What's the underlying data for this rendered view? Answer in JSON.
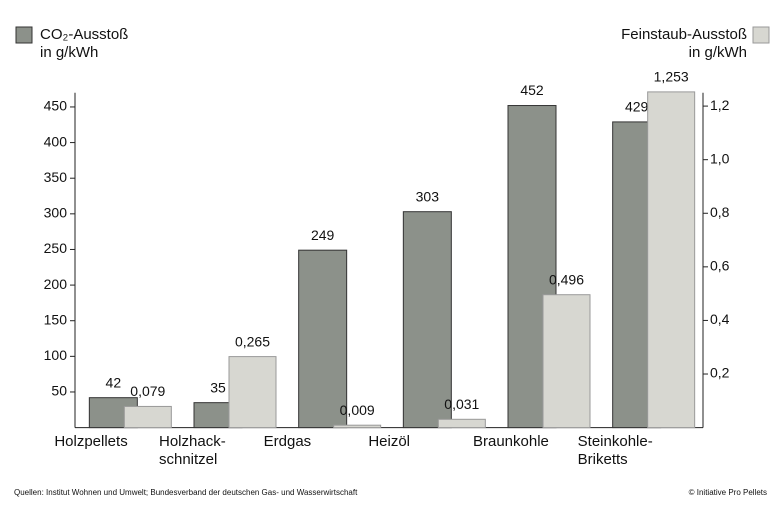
{
  "chart_data": {
    "type": "bar",
    "categories": [
      "Holzpellets",
      "Holzhack-\nschnitzel",
      "Erdgas",
      "Heizöl",
      "Braunkohle",
      "Steinkohle-\nBriketts"
    ],
    "series": [
      {
        "name": "CO₂-Ausstoß\nin g/kWh",
        "color": "#8c918a",
        "values": [
          42,
          35,
          249,
          303,
          452,
          429
        ]
      },
      {
        "name": "Feinstaub-Ausstoß\nin g/kWh",
        "color": "#d7d7d1",
        "axis": "y2",
        "values": [
          0.079,
          0.265,
          0.009,
          0.031,
          0.496,
          1.253
        ],
        "value_labels": [
          "0,079",
          "0,265",
          "0,009",
          "0,031",
          "0,496",
          "1,253"
        ]
      }
    ],
    "ylim": [
      0,
      470
    ],
    "yticks": [
      50,
      100,
      150,
      200,
      250,
      300,
      350,
      400,
      450
    ],
    "y2lim": [
      0,
      1.25
    ],
    "y2ticks": [
      {
        "value": 0.2,
        "label": "0,2"
      },
      {
        "value": 0.4,
        "label": "0,4"
      },
      {
        "value": 0.6,
        "label": "0,6"
      },
      {
        "value": 0.8,
        "label": "0,8"
      },
      {
        "value": 1.0,
        "label": "1,0"
      },
      {
        "value": 1.2,
        "label": "1,2"
      }
    ],
    "source": "Quellen: Institut Wohnen und Umwelt; Bundesverband der deutschen Gas- und Wasserwirtschaft",
    "credit": "© Initiative Pro Pellets"
  }
}
